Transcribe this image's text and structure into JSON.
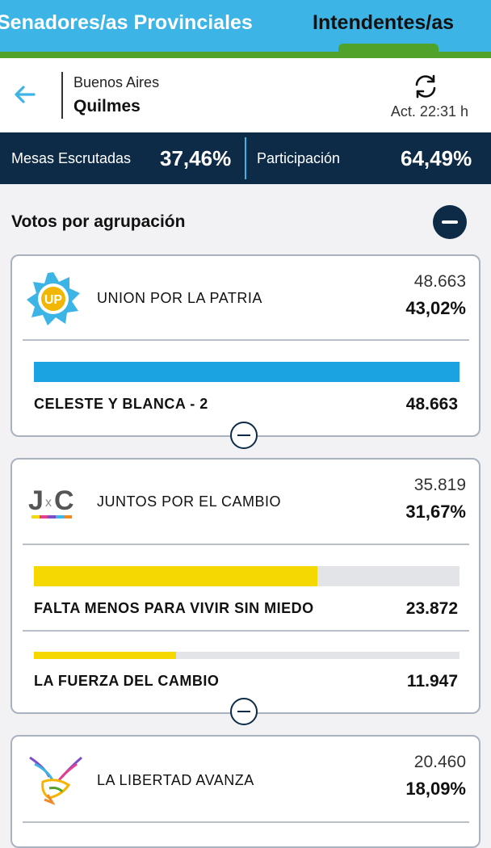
{
  "tabs": {
    "left_label": "Senadores/as Provinciales",
    "right_label": "Intendentes/as"
  },
  "header": {
    "province": "Buenos Aires",
    "city": "Quilmes",
    "updated": "Act. 22:31 h"
  },
  "stats": {
    "mesas_label": "Mesas Escrutadas",
    "mesas_value": "37,46%",
    "participacion_label": "Participación",
    "participacion_value": "64,49%"
  },
  "section": {
    "title": "Votos por agrupación"
  },
  "colors": {
    "header_blue": "#3db4e6",
    "tab_green": "#4fa32b",
    "navy": "#0d2b46",
    "up_bar": "#1aa3e0",
    "jxc_bar": "#f4d800"
  },
  "parties": [
    {
      "name": "UNION POR LA PATRIA",
      "logo_text": "UP",
      "votes": "48.663",
      "percent": "43,02%",
      "lists": [
        {
          "name": "CELESTE Y BLANCA - 2",
          "votes": "48.663",
          "share": 1.0
        }
      ]
    },
    {
      "name": "JUNTOS POR EL CAMBIO",
      "logo_text_j": "J",
      "logo_text_x": "x",
      "logo_text_c": "C",
      "votes": "35.819",
      "percent": "31,67%",
      "lists": [
        {
          "name": "FALTA MENOS PARA VIVIR SIN MIEDO",
          "votes": "23.872",
          "share": 0.666
        },
        {
          "name": "LA FUERZA DEL CAMBIO",
          "votes": "11.947",
          "share": 0.334
        }
      ]
    },
    {
      "name": "LA LIBERTAD AVANZA",
      "votes": "20.460",
      "percent": "18,09%"
    }
  ]
}
